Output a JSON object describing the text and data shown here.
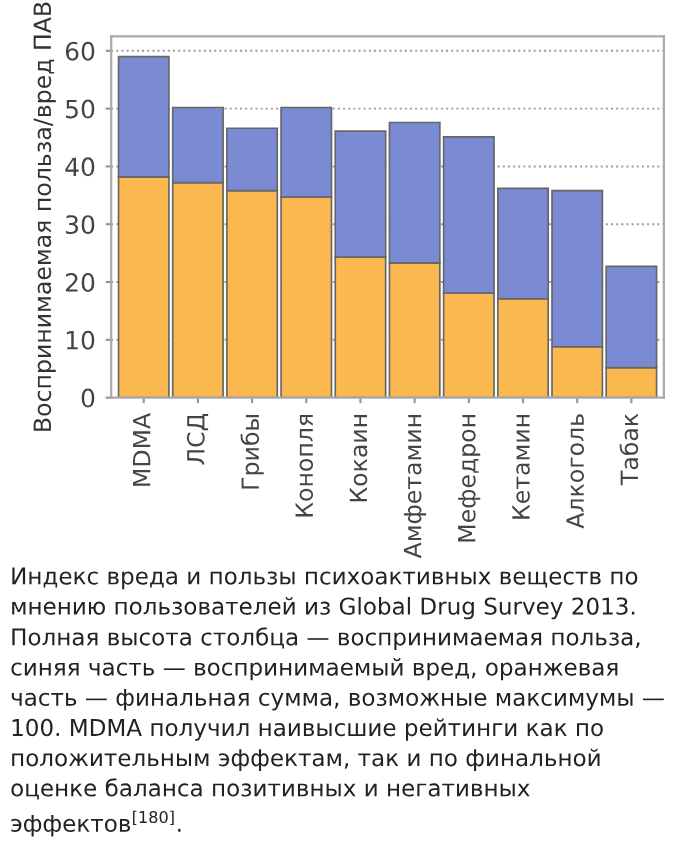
{
  "chart_data": {
    "type": "bar",
    "stacked": true,
    "ylabel": "Воспринимаемая польза/вред ПАВ",
    "categories": [
      "MDMA",
      "ЛСД",
      "Грибы",
      "Конопля",
      "Кокаин",
      "Амфетамин",
      "Мефедрон",
      "Кетамин",
      "Алкоголь",
      "Табак"
    ],
    "series": [
      {
        "color": "#fbb84f",
        "values": [
          38.2,
          37.2,
          35.8,
          34.7,
          24.3,
          23.3,
          18.1,
          17.1,
          8.8,
          5.2
        ]
      },
      {
        "color": "#7b8bd3",
        "values": [
          20.8,
          13.0,
          10.8,
          15.5,
          21.8,
          24.3,
          27.0,
          19.1,
          27.0,
          17.5
        ]
      }
    ],
    "ylim": [
      0,
      62.5
    ],
    "yticks": [
      0,
      10,
      20,
      30,
      40,
      50,
      60
    ],
    "grid": "y",
    "annotations": [
      "Индекс вреда и пользы психоактивных веществ по мнению пользователей из Global Drug Survey 2013. Полная высота столбца — воспринимаемая польза, синяя часть — воспринимаемый вред, оранжевая часть — финальная сумма, возможные максимумы — 100. MDMA получил наивысшие рейтинги как по положительным эффектам, так и по финальной оценке баланса позитивных и негативных эффектов$^{[180]}$."
    ]
  }
}
